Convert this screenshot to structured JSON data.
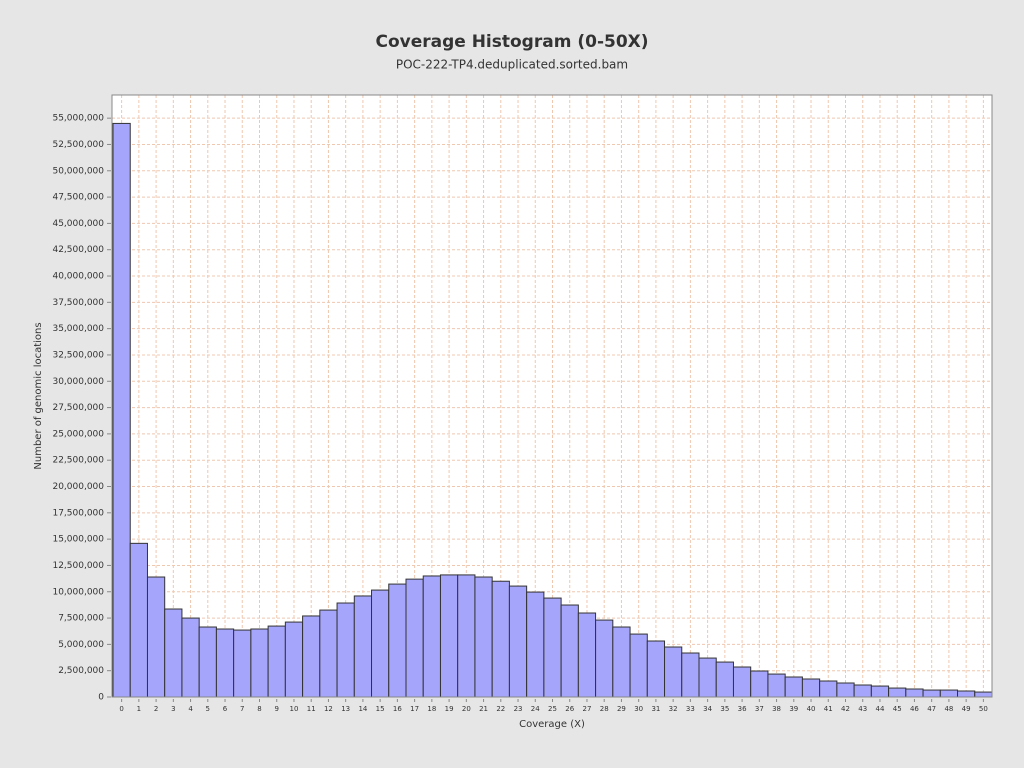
{
  "chart_data": {
    "type": "bar",
    "title": "Coverage Histogram (0-50X)",
    "subtitle": "POC-222-TP4.deduplicated.sorted.bam",
    "x_label": "Coverage (X)",
    "y_label": "Number of genomic locations",
    "color": "#a5a5fb",
    "grid": true,
    "categories": [
      "0",
      "1",
      "2",
      "3",
      "4",
      "5",
      "6",
      "7",
      "8",
      "9",
      "10",
      "11",
      "12",
      "13",
      "14",
      "15",
      "16",
      "17",
      "18",
      "19",
      "20",
      "21",
      "22",
      "23",
      "24",
      "25",
      "26",
      "27",
      "28",
      "29",
      "30",
      "31",
      "32",
      "33",
      "34",
      "35",
      "36",
      "37",
      "38",
      "39",
      "40",
      "41",
      "42",
      "43",
      "44",
      "45",
      "46",
      "47",
      "48",
      "49",
      "50"
    ],
    "values": [
      54500000,
      14600000,
      11400000,
      8360000,
      7500000,
      6650000,
      6460000,
      6360000,
      6460000,
      6740000,
      7120000,
      7700000,
      8260000,
      8930000,
      9600000,
      10160000,
      10730000,
      11200000,
      11500000,
      11600000,
      11600000,
      11400000,
      11000000,
      10540000,
      9970000,
      9400000,
      8740000,
      7980000,
      7310000,
      6650000,
      5980000,
      5320000,
      4750000,
      4180000,
      3700000,
      3320000,
      2850000,
      2470000,
      2180000,
      1900000,
      1710000,
      1520000,
      1330000,
      1140000,
      1040000,
      850000,
      760000,
      660000,
      660000,
      570000,
      470000
    ],
    "ylim": [
      0,
      57200000
    ],
    "yticks": [
      0,
      {
        "value": 2500000,
        "label": "2,500,000"
      },
      {
        "value": 5000000,
        "label": "5,000,000"
      },
      {
        "value": 7500000,
        "label": "7,500,000"
      },
      {
        "value": 10000000,
        "label": "10,000,000"
      },
      {
        "value": 12500000,
        "label": "12,500,000"
      },
      {
        "value": 15000000,
        "label": "15,000,000"
      },
      {
        "value": 17500000,
        "label": "17,500,000"
      },
      {
        "value": 20000000,
        "label": "20,000,000"
      },
      {
        "value": 22500000,
        "label": "22,500,000"
      },
      {
        "value": 25000000,
        "label": "25,000,000"
      },
      {
        "value": 27500000,
        "label": "27,500,000"
      },
      {
        "value": 30000000,
        "label": "30,000,000"
      },
      {
        "value": 32500000,
        "label": "32,500,000"
      },
      {
        "value": 35000000,
        "label": "35,000,000"
      },
      {
        "value": 37500000,
        "label": "37,500,000"
      },
      {
        "value": 40000000,
        "label": "40,000,000"
      },
      {
        "value": 42500000,
        "label": "42,500,000"
      },
      {
        "value": 45000000,
        "label": "45,000,000"
      },
      {
        "value": 47500000,
        "label": "47,500,000"
      },
      {
        "value": 50000000,
        "label": "50,000,000"
      },
      {
        "value": 52500000,
        "label": "52,500,000"
      },
      {
        "value": 55000000,
        "label": "55,000,000"
      }
    ]
  }
}
